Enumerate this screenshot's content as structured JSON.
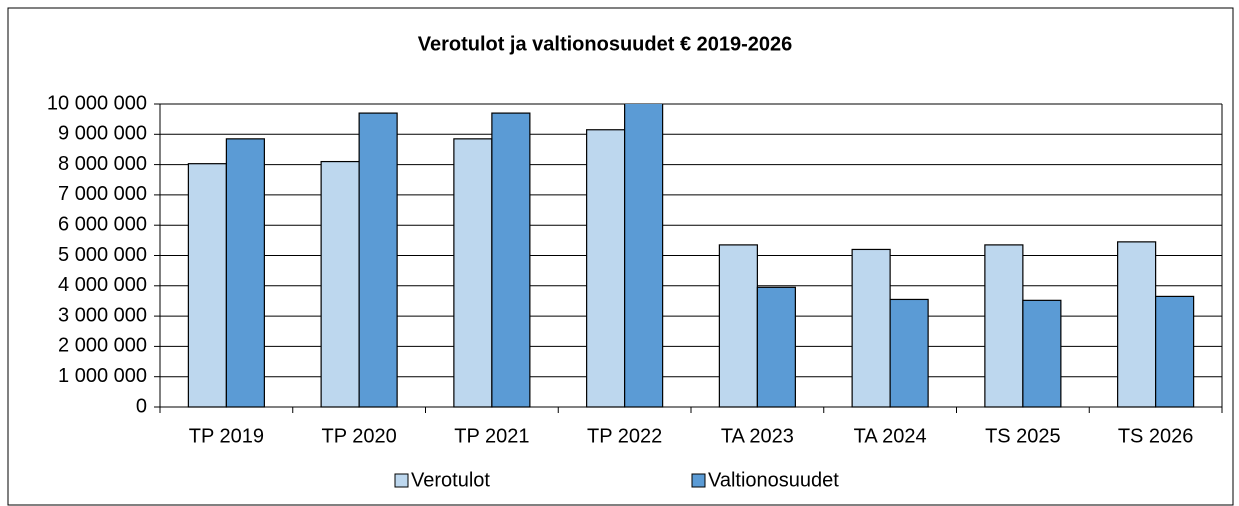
{
  "chart_data": {
    "type": "bar",
    "title": "Verotulot ja valtionosuudet € 2019-2026",
    "categories": [
      "TP 2019",
      "TP 2020",
      "TP 2021",
      "TP 2022",
      "TA 2023",
      "TA 2024",
      "TS 2025",
      "TS 2026"
    ],
    "series": [
      {
        "name": "Verotulot",
        "color": "#bdd7ee",
        "values": [
          8030000,
          8100000,
          8850000,
          9150000,
          5350000,
          5200000,
          5350000,
          5450000
        ]
      },
      {
        "name": "Valtionosuudet",
        "color": "#5b9bd5",
        "values": [
          8850000,
          9700000,
          9700000,
          10500000,
          3950000,
          3550000,
          3520000,
          3650000
        ]
      }
    ],
    "ylim": [
      0,
      10000000
    ],
    "yticks": [
      0,
      {
        "value": 1000000,
        "label": "1 000 000"
      },
      {
        "value": 2000000,
        "label": "2 000 000"
      },
      {
        "value": 3000000,
        "label": "3 000 000"
      },
      {
        "value": 4000000,
        "label": "4 000 000"
      },
      {
        "value": 5000000,
        "label": "5 000 000"
      },
      {
        "value": 6000000,
        "label": "6 000 000"
      },
      {
        "value": 7000000,
        "label": "7 000 000"
      },
      {
        "value": 8000000,
        "label": "8 000 000"
      },
      {
        "value": 9000000,
        "label": "9 000 000"
      },
      {
        "value": 10000000,
        "label": "10 000 000"
      }
    ],
    "grid": true,
    "legend": "bottom"
  }
}
